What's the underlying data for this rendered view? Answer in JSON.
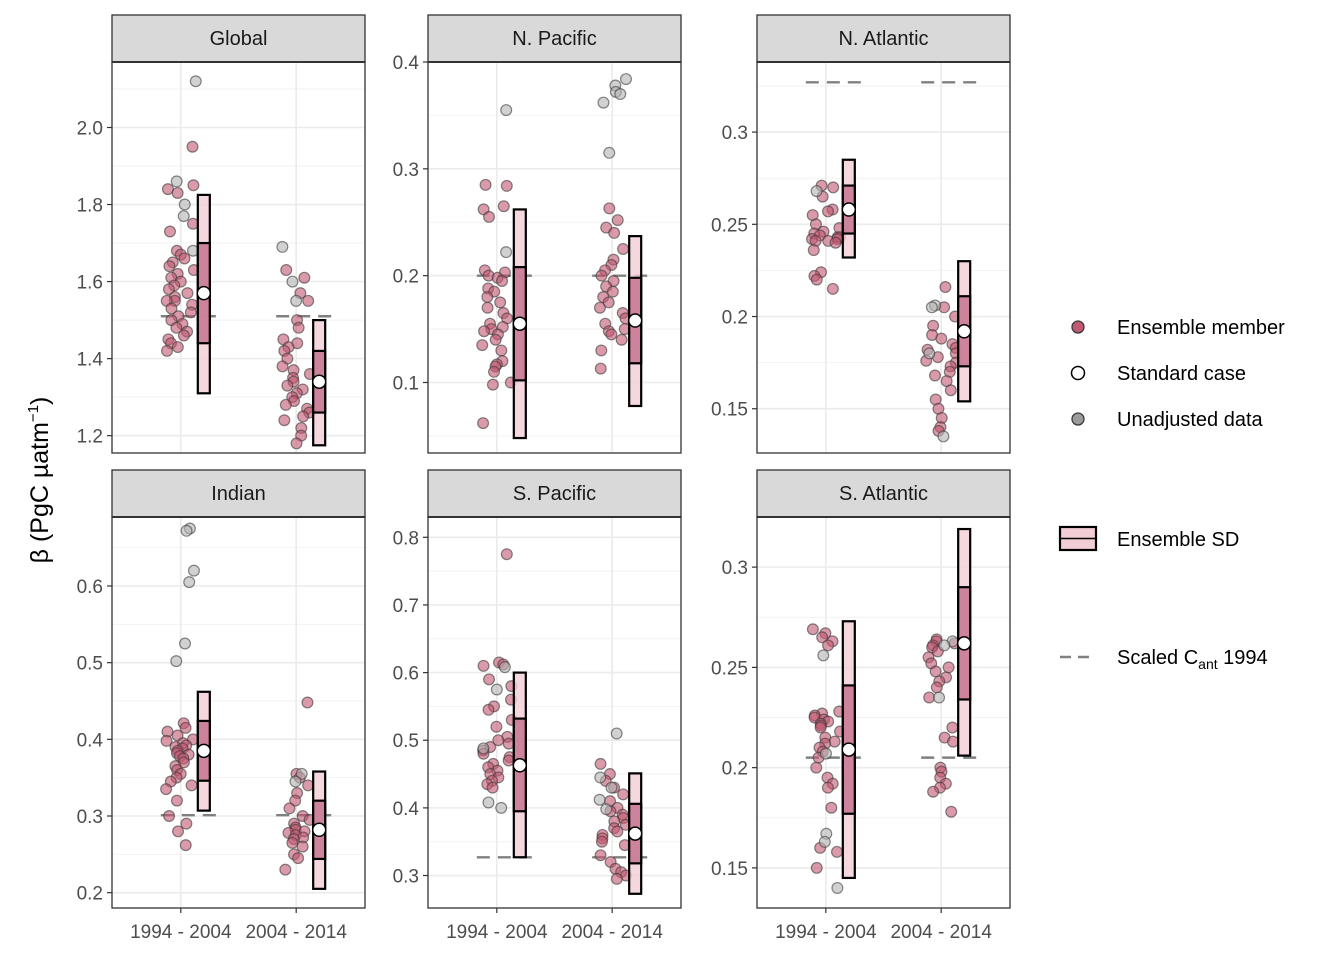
{
  "chart_data": {
    "type": "scatter",
    "y_axis_label": "β (PgC µatm",
    "y_axis_label_sup": "−1",
    "y_axis_label_end": ")",
    "x_categories": [
      "1994 - 2004",
      "2004 - 2014"
    ],
    "colors": {
      "ensemble_member": "#c2576f",
      "unadjusted": "#b3b3b3",
      "sd_fill": "#f2cdd6",
      "sd_inner": "#c97a93",
      "dashed": "#808080",
      "strip_bg": "#d9d9d9",
      "grid": "#ebebeb"
    },
    "legend": {
      "ensemble_member": "Ensemble member",
      "standard_case": "Standard case",
      "unadjusted": "Unadjusted data",
      "sd": "Ensemble SD",
      "scaled_prefix": "Scaled C",
      "scaled_sub": "ant",
      "scaled_suffix": " 1994"
    },
    "panels": [
      {
        "title": "Global",
        "ylim": [
          1.155,
          2.17
        ],
        "yticks": [
          1.2,
          1.4,
          1.6,
          1.8,
          2.0
        ],
        "groups": [
          {
            "standard": 1.57,
            "sd_outer": [
              1.31,
              1.825
            ],
            "sd_inner": [
              1.44,
              1.7
            ],
            "scaled": 1.51,
            "members": [
              1.95,
              1.85,
              1.84,
              1.83,
              1.75,
              1.73,
              1.68,
              1.67,
              1.66,
              1.65,
              1.64,
              1.63,
              1.62,
              1.61,
              1.6,
              1.59,
              1.58,
              1.57,
              1.56,
              1.55,
              1.55,
              1.54,
              1.53,
              1.52,
              1.51,
              1.5,
              1.49,
              1.48,
              1.47,
              1.46,
              1.45,
              1.44,
              1.43,
              1.42
            ],
            "unadjusted": [
              2.12,
              1.86,
              1.8,
              1.77,
              1.68
            ]
          },
          {
            "standard": 1.34,
            "sd_outer": [
              1.175,
              1.5
            ],
            "sd_inner": [
              1.26,
              1.42
            ],
            "scaled": 1.51,
            "members": [
              1.63,
              1.61,
              1.57,
              1.55,
              1.5,
              1.48,
              1.45,
              1.44,
              1.43,
              1.42,
              1.4,
              1.38,
              1.37,
              1.36,
              1.35,
              1.34,
              1.33,
              1.32,
              1.31,
              1.3,
              1.29,
              1.28,
              1.27,
              1.26,
              1.25,
              1.24,
              1.22,
              1.2,
              1.18
            ],
            "unadjusted": [
              1.69,
              1.6,
              1.55
            ]
          }
        ]
      },
      {
        "title": "N. Pacific",
        "ylim": [
          0.034,
          0.4
        ],
        "yticks": [
          0.1,
          0.2,
          0.3,
          0.4
        ],
        "groups": [
          {
            "standard": 0.155,
            "sd_outer": [
              0.048,
              0.262
            ],
            "sd_inner": [
              0.102,
              0.208
            ],
            "scaled": 0.2,
            "members": [
              0.285,
              0.284,
              0.265,
              0.262,
              0.255,
              0.205,
              0.203,
              0.2,
              0.198,
              0.195,
              0.188,
              0.185,
              0.18,
              0.175,
              0.17,
              0.165,
              0.16,
              0.155,
              0.152,
              0.15,
              0.148,
              0.145,
              0.14,
              0.135,
              0.13,
              0.12,
              0.117,
              0.115,
              0.11,
              0.1,
              0.098,
              0.062
            ],
            "unadjusted": [
              0.355,
              0.222
            ]
          },
          {
            "standard": 0.158,
            "sd_outer": [
              0.078,
              0.237
            ],
            "sd_inner": [
              0.118,
              0.198
            ],
            "scaled": 0.2,
            "members": [
              0.263,
              0.252,
              0.245,
              0.24,
              0.225,
              0.215,
              0.21,
              0.205,
              0.2,
              0.195,
              0.19,
              0.185,
              0.18,
              0.175,
              0.17,
              0.165,
              0.16,
              0.155,
              0.15,
              0.148,
              0.145,
              0.14,
              0.13,
              0.113
            ],
            "unadjusted": [
              0.384,
              0.378,
              0.372,
              0.37,
              0.362,
              0.315
            ]
          }
        ]
      },
      {
        "title": "N. Atlantic",
        "ylim": [
          0.126,
          0.338
        ],
        "yticks": [
          0.15,
          0.2,
          0.25,
          0.3
        ],
        "groups": [
          {
            "standard": 0.258,
            "sd_outer": [
              0.232,
              0.285
            ],
            "sd_inner": [
              0.245,
              0.271
            ],
            "scaled": 0.327,
            "members": [
              0.271,
              0.27,
              0.265,
              0.258,
              0.257,
              0.255,
              0.25,
              0.248,
              0.246,
              0.245,
              0.244,
              0.243,
              0.243,
              0.242,
              0.242,
              0.241,
              0.241,
              0.24,
              0.236,
              0.224,
              0.222,
              0.22,
              0.215
            ],
            "unadjusted": [
              0.268
            ]
          },
          {
            "standard": 0.192,
            "sd_outer": [
              0.154,
              0.23
            ],
            "sd_inner": [
              0.173,
              0.211
            ],
            "scaled": 0.327,
            "members": [
              0.216,
              0.205,
              0.2,
              0.195,
              0.19,
              0.188,
              0.185,
              0.183,
              0.182,
              0.18,
              0.178,
              0.176,
              0.175,
              0.173,
              0.17,
              0.168,
              0.165,
              0.16,
              0.155,
              0.15,
              0.145,
              0.14,
              0.138
            ],
            "unadjusted": [
              0.206,
              0.205,
              0.18,
              0.135
            ]
          }
        ]
      },
      {
        "title": "Indian",
        "ylim": [
          0.18,
          0.69
        ],
        "yticks": [
          0.2,
          0.3,
          0.4,
          0.5,
          0.6
        ],
        "groups": [
          {
            "standard": 0.385,
            "sd_outer": [
              0.307,
              0.462
            ],
            "sd_inner": [
              0.346,
              0.424
            ],
            "scaled": 0.301,
            "members": [
              0.421,
              0.415,
              0.41,
              0.405,
              0.4,
              0.398,
              0.395,
              0.392,
              0.39,
              0.388,
              0.385,
              0.382,
              0.38,
              0.378,
              0.375,
              0.37,
              0.365,
              0.36,
              0.355,
              0.35,
              0.345,
              0.34,
              0.335,
              0.32,
              0.3,
              0.29,
              0.28,
              0.262
            ],
            "unadjusted": [
              0.675,
              0.672,
              0.62,
              0.605,
              0.525,
              0.502
            ]
          },
          {
            "standard": 0.282,
            "sd_outer": [
              0.205,
              0.358
            ],
            "sd_inner": [
              0.244,
              0.32
            ],
            "scaled": 0.301,
            "members": [
              0.448,
              0.355,
              0.35,
              0.34,
              0.33,
              0.32,
              0.31,
              0.3,
              0.295,
              0.29,
              0.285,
              0.282,
              0.28,
              0.278,
              0.275,
              0.272,
              0.27,
              0.265,
              0.26,
              0.25,
              0.245,
              0.23
            ],
            "unadjusted": [
              0.355,
              0.345
            ]
          }
        ]
      },
      {
        "title": "S. Pacific",
        "ylim": [
          0.252,
          0.83
        ],
        "yticks": [
          0.3,
          0.4,
          0.5,
          0.6,
          0.7,
          0.8
        ],
        "groups": [
          {
            "standard": 0.463,
            "sd_outer": [
              0.327,
              0.6
            ],
            "sd_inner": [
              0.395,
              0.532
            ],
            "scaled": 0.327,
            "members": [
              0.775,
              0.615,
              0.612,
              0.61,
              0.59,
              0.58,
              0.56,
              0.55,
              0.545,
              0.53,
              0.52,
              0.505,
              0.5,
              0.495,
              0.49,
              0.485,
              0.48,
              0.475,
              0.47,
              0.465,
              0.46,
              0.455,
              0.45,
              0.445,
              0.44,
              0.435,
              0.43
            ],
            "unadjusted": [
              0.608,
              0.575,
              0.488,
              0.408,
              0.4
            ]
          },
          {
            "standard": 0.362,
            "sd_outer": [
              0.273,
              0.451
            ],
            "sd_inner": [
              0.318,
              0.406
            ],
            "scaled": 0.327,
            "members": [
              0.465,
              0.45,
              0.44,
              0.43,
              0.42,
              0.41,
              0.4,
              0.395,
              0.39,
              0.385,
              0.38,
              0.375,
              0.37,
              0.365,
              0.36,
              0.355,
              0.35,
              0.345,
              0.33,
              0.32,
              0.31,
              0.305,
              0.3,
              0.295
            ],
            "unadjusted": [
              0.51,
              0.445,
              0.43,
              0.412,
              0.398
            ]
          }
        ]
      },
      {
        "title": "S. Atlantic",
        "ylim": [
          0.13,
          0.325
        ],
        "yticks": [
          0.15,
          0.2,
          0.25,
          0.3
        ],
        "groups": [
          {
            "standard": 0.209,
            "sd_outer": [
              0.145,
              0.273
            ],
            "sd_inner": [
              0.177,
              0.241
            ],
            "scaled": 0.205,
            "members": [
              0.269,
              0.267,
              0.265,
              0.263,
              0.261,
              0.228,
              0.227,
              0.226,
              0.225,
              0.224,
              0.223,
              0.222,
              0.221,
              0.22,
              0.218,
              0.215,
              0.213,
              0.212,
              0.21,
              0.208,
              0.205,
              0.2,
              0.195,
              0.192,
              0.19,
              0.18,
              0.16,
              0.158,
              0.15
            ],
            "unadjusted": [
              0.256,
              0.207,
              0.167,
              0.163,
              0.14
            ]
          },
          {
            "standard": 0.262,
            "sd_outer": [
              0.206,
              0.319
            ],
            "sd_inner": [
              0.234,
              0.29
            ],
            "scaled": 0.205,
            "members": [
              0.264,
              0.263,
              0.262,
              0.261,
              0.26,
              0.258,
              0.255,
              0.252,
              0.25,
              0.248,
              0.245,
              0.243,
              0.24,
              0.235,
              0.22,
              0.215,
              0.213,
              0.2,
              0.198,
              0.195,
              0.192,
              0.19,
              0.188,
              0.178
            ],
            "unadjusted": [
              0.263,
              0.261,
              0.235
            ]
          }
        ]
      }
    ]
  }
}
